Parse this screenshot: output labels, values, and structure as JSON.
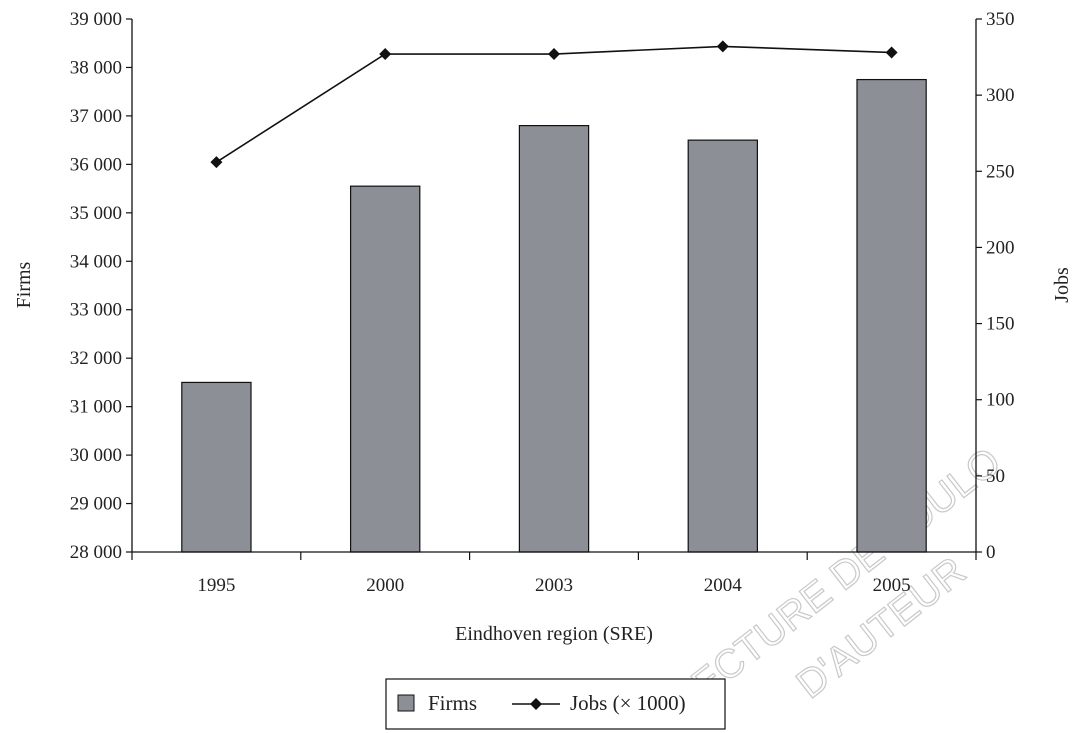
{
  "chart_data": {
    "type": "bar",
    "categories": [
      "1995",
      "2000",
      "2003",
      "2004",
      "2005"
    ],
    "xlabel": "Eindhoven region (SRE)",
    "ylabel": "Firms",
    "y2label": "Jobs",
    "ylim": [
      28000,
      39000
    ],
    "y2lim": [
      0,
      350
    ],
    "yticks": [
      "28 000",
      "29 000",
      "30 000",
      "31 000",
      "32 000",
      "33 000",
      "34 000",
      "35 000",
      "36 000",
      "37 000",
      "38 000",
      "39 000"
    ],
    "y2ticks": [
      "0",
      "50",
      "100",
      "150",
      "200",
      "250",
      "300",
      "350"
    ],
    "series": [
      {
        "name": "Firms",
        "kind": "bar",
        "axis": "left",
        "values": [
          31500,
          35550,
          36800,
          36500,
          37750
        ],
        "color": "#8c8f96"
      },
      {
        "name": "Jobs (× 1000)",
        "kind": "line",
        "axis": "right",
        "values": [
          256,
          327,
          327,
          332,
          328
        ],
        "color": "#111111"
      }
    ],
    "legend": {
      "position": "bottom-center",
      "items": [
        "Firms",
        "Jobs (× 1000)"
      ]
    },
    "grid": false
  },
  "watermark": [
    "ECTURE DE TOULO",
    "D'AUTEUR"
  ]
}
